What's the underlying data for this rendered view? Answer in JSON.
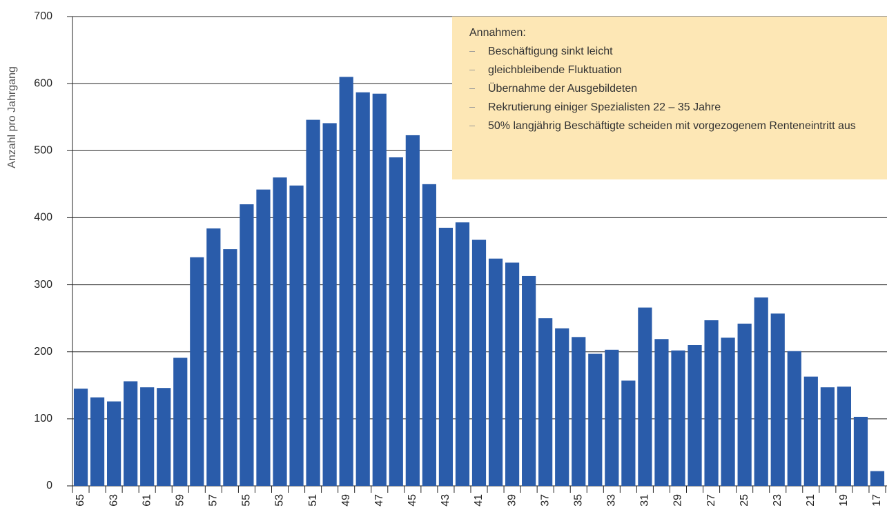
{
  "chart_data": {
    "type": "bar",
    "y_label": "Anzahl pro Jahrgang",
    "categories": [
      "65",
      null,
      "63",
      null,
      "61",
      null,
      "59",
      null,
      "57",
      null,
      "55",
      null,
      "53",
      null,
      "51",
      null,
      "49",
      null,
      "47",
      null,
      "45",
      null,
      "43",
      null,
      "41",
      null,
      "39",
      null,
      "37",
      null,
      "35",
      null,
      "33",
      null,
      "31",
      null,
      "29",
      null,
      "27",
      null,
      "25",
      null,
      "23",
      null,
      "21",
      null,
      "19",
      null,
      "17"
    ],
    "values": [
      145,
      132,
      126,
      156,
      147,
      146,
      191,
      341,
      384,
      353,
      420,
      442,
      460,
      448,
      546,
      541,
      610,
      587,
      585,
      490,
      523,
      450,
      385,
      393,
      367,
      339,
      333,
      313,
      250,
      235,
      222,
      197,
      203,
      157,
      266,
      219,
      202,
      210,
      247,
      221,
      242,
      281,
      257,
      201,
      163,
      147,
      148,
      103,
      22
    ],
    "color": "#2a5caa",
    "ylim": [
      0,
      700
    ],
    "yticks": [
      0,
      100,
      200,
      300,
      400,
      500,
      600,
      700
    ],
    "grid": true,
    "annotation": {
      "title": "Annahmen:",
      "items": [
        "Beschäftigung sinkt leicht",
        "gleichbleibende Fluktuation",
        "Übernahme der Ausgebildeten",
        "Rekrutierung einiger Spezialisten 22 – 35 Jahre",
        "50% langjährig Beschäftigte scheiden mit vorgezogenem Renteneintritt aus"
      ]
    }
  }
}
